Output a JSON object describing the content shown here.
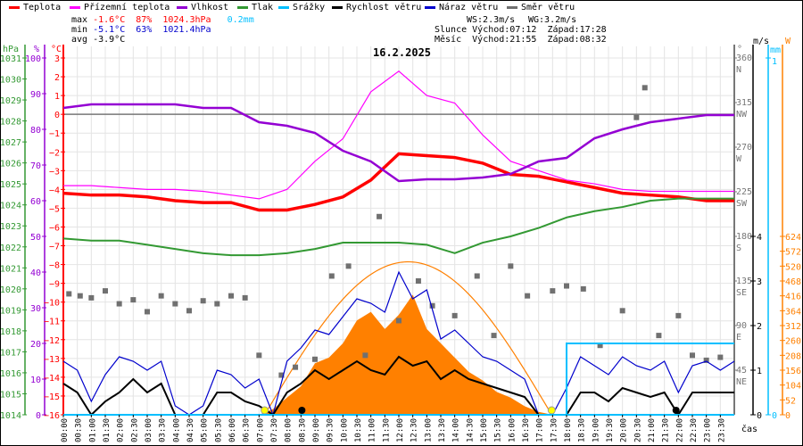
{
  "legend": [
    {
      "label": "Teplota",
      "color": "#ff0000"
    },
    {
      "label": "Přízemní teplota",
      "color": "#ff00ff"
    },
    {
      "label": "Vlhkost",
      "color": "#9400d3"
    },
    {
      "label": "Tlak",
      "color": "#339933"
    },
    {
      "label": "Srážky",
      "color": "#00bfff"
    },
    {
      "label": "Rychlost větru",
      "color": "#000000"
    },
    {
      "label": "Náraz větru",
      "color": "#0000cc"
    },
    {
      "label": "Směr větru",
      "color": "#707070"
    }
  ],
  "stats": {
    "max_label": "max",
    "max_temp": "-1.6°C",
    "max_hum": "87%",
    "max_press": "1024.3hPa",
    "max_rain": "0.2mm",
    "min_label": "min",
    "min_temp": "-5.1°C",
    "min_hum": "63%",
    "min_press": "1021.4hPa",
    "avg_label": "avg",
    "avg_temp": "-3.9°C",
    "ws": "WS:2.3m/s",
    "wg": "WG:3.2m/s",
    "sun_label": "Slunce",
    "sun_rise": "Východ:07:12",
    "sun_set": "Západ:17:28",
    "moon_label": "Měsíc",
    "moon_rise": "Východ:21:55",
    "moon_set": "Západ:08:32"
  },
  "chart_data": {
    "type": "line",
    "title": "16.2.2025",
    "xlabel": "čas",
    "x_ticks": [
      "00:00",
      "00:30",
      "01:00",
      "01:30",
      "02:00",
      "02:30",
      "03:00",
      "03:30",
      "04:00",
      "04:30",
      "05:00",
      "05:30",
      "06:00",
      "06:30",
      "07:00",
      "07:30",
      "08:00",
      "08:30",
      "09:00",
      "09:30",
      "10:00",
      "10:30",
      "11:00",
      "11:30",
      "12:00",
      "12:30",
      "13:00",
      "13:30",
      "14:00",
      "14:30",
      "15:00",
      "15:30",
      "16:00",
      "16:30",
      "17:00",
      "17:30",
      "18:00",
      "18:30",
      "19:00",
      "19:30",
      "20:00",
      "20:30",
      "21:00",
      "21:30",
      "22:00",
      "22:30",
      "23:00",
      "23:30"
    ],
    "axes": {
      "hPa": {
        "label": "hPa",
        "range": [
          1014,
          1031
        ],
        "ticks": [
          1014,
          1015,
          1016,
          1017,
          1018,
          1019,
          1020,
          1021,
          1022,
          1023,
          1024,
          1025,
          1026,
          1027,
          1028,
          1029,
          1030,
          1031
        ],
        "color": "#339933"
      },
      "pct": {
        "label": "%",
        "range": [
          0,
          100
        ],
        "ticks": [
          0,
          10,
          20,
          30,
          40,
          50,
          60,
          70,
          80,
          90,
          100
        ],
        "color": "#9400d3"
      },
      "temp": {
        "label": "°C",
        "range": [
          -16,
          3
        ],
        "ticks": [
          -16,
          -15,
          -14,
          -13,
          -12,
          -11,
          -10,
          -9,
          -8,
          -7,
          -6,
          -5,
          -4,
          -3,
          -2,
          -1,
          0,
          1,
          2,
          3
        ],
        "color": "#ff0000"
      },
      "dir": {
        "label": "°",
        "range": [
          0,
          360
        ],
        "ticks": [
          {
            "v": 45,
            "t": "45",
            "d": "NE"
          },
          {
            "v": 90,
            "t": "90",
            "d": "E"
          },
          {
            "v": 135,
            "t": "135",
            "d": "SE"
          },
          {
            "v": 180,
            "t": "180",
            "d": "S"
          },
          {
            "v": 225,
            "t": "225",
            "d": "SW"
          },
          {
            "v": 270,
            "t": "270",
            "d": "W"
          },
          {
            "v": 315,
            "t": "315",
            "d": "NW"
          },
          {
            "v": 360,
            "t": "360",
            "d": "N"
          }
        ],
        "color": "#707070"
      },
      "wind": {
        "label": "m/s",
        "range": [
          0,
          8
        ],
        "ticks": [
          0,
          1,
          2,
          3,
          4
        ],
        "color": "#000000"
      },
      "rain": {
        "label": "mm",
        "range": [
          0,
          1
        ],
        "ticks": [
          0,
          1
        ],
        "color": "#00bfff"
      },
      "solar": {
        "label": "W",
        "range": [
          0,
          1248
        ],
        "ticks": [
          0,
          52,
          104,
          156,
          208,
          260,
          312,
          364,
          416,
          468,
          520,
          572,
          624
        ],
        "color": "#ff8000"
      }
    },
    "hours": [
      0,
      1,
      2,
      3,
      4,
      5,
      6,
      7,
      8,
      9,
      10,
      11,
      12,
      13,
      14,
      15,
      16,
      17,
      18,
      19,
      20,
      21,
      22,
      23,
      24
    ],
    "series": [
      {
        "name": "Teplota",
        "axis": "temp",
        "values": [
          -4.2,
          -4.3,
          -4.3,
          -4.4,
          -4.6,
          -4.7,
          -4.7,
          -5.1,
          -5.1,
          -4.8,
          -4.4,
          -3.5,
          -2.1,
          -2.2,
          -2.3,
          -2.6,
          -3.2,
          -3.3,
          -3.6,
          -3.9,
          -4.2,
          -4.3,
          -4.4,
          -4.6,
          -4.6
        ]
      },
      {
        "name": "Přízemní teplota",
        "axis": "temp",
        "values": [
          -3.8,
          -3.8,
          -3.9,
          -4.0,
          -4.0,
          -4.1,
          -4.3,
          -4.5,
          -4.0,
          -2.5,
          -1.3,
          1.2,
          2.3,
          1.0,
          0.6,
          -1.1,
          -2.5,
          -3.0,
          -3.5,
          -3.7,
          -4.0,
          -4.1,
          -4.1,
          -4.1,
          -4.1
        ]
      },
      {
        "name": "Vlhkost",
        "axis": "pct",
        "values": [
          86,
          87,
          87,
          87,
          87,
          86,
          86,
          82,
          81,
          79,
          74,
          71,
          65.5,
          66,
          66,
          66.5,
          67.5,
          71,
          72,
          77.5,
          80,
          82,
          83,
          84,
          84
        ]
      },
      {
        "name": "Tlak",
        "axis": "hPa",
        "values": [
          1022.4,
          1022.3,
          1022.3,
          1022.1,
          1021.9,
          1021.7,
          1021.6,
          1021.6,
          1021.7,
          1021.9,
          1022.2,
          1022.2,
          1022.2,
          1022.1,
          1021.7,
          1022.2,
          1022.5,
          1022.9,
          1023.4,
          1023.7,
          1023.9,
          1024.2,
          1024.3,
          1024.3,
          1024.3
        ]
      }
    ],
    "half_hours": [
      0,
      0.5,
      1,
      1.5,
      2,
      2.5,
      3,
      3.5,
      4,
      4.5,
      5,
      5.5,
      6,
      6.5,
      7,
      7.5,
      8,
      8.5,
      9,
      9.5,
      10,
      10.5,
      11,
      11.5,
      12,
      12.5,
      13,
      13.5,
      14,
      14.5,
      15,
      15.5,
      16,
      16.5,
      17,
      17.5,
      18,
      18.5,
      19,
      19.5,
      20,
      20.5,
      21,
      21.5,
      22,
      22.5,
      23,
      23.5,
      24
    ],
    "wind_speed": [
      0.7,
      0.5,
      0,
      0.3,
      0.5,
      0.8,
      0.5,
      0.7,
      0,
      0,
      0,
      0.5,
      0.5,
      0.3,
      0.2,
      0,
      0.5,
      0.7,
      1.0,
      0.8,
      1.0,
      1.2,
      1.0,
      0.9,
      1.3,
      1.1,
      1.2,
      0.8,
      1.0,
      0.8,
      0.7,
      0.6,
      0.5,
      0.4,
      0,
      0,
      0,
      0.5,
      0.5,
      0.3,
      0.6,
      0.5,
      0.4,
      0.5,
      0,
      0.5,
      0.5,
      0.5,
      0.5
    ],
    "wind_gust": [
      1.2,
      1.0,
      0.3,
      0.9,
      1.3,
      1.2,
      1.0,
      1.2,
      0.2,
      0,
      0.2,
      1.0,
      0.9,
      0.6,
      0.8,
      0,
      1.2,
      1.5,
      1.9,
      1.8,
      2.2,
      2.6,
      2.5,
      2.3,
      3.2,
      2.6,
      2.8,
      1.7,
      1.9,
      1.6,
      1.3,
      1.2,
      1.0,
      0.8,
      0,
      0,
      0.6,
      1.3,
      1.1,
      0.9,
      1.3,
      1.1,
      1.0,
      1.2,
      0.5,
      1.1,
      1.2,
      1.0,
      1.2
    ],
    "rain": [
      0,
      0,
      0,
      0,
      0,
      0,
      0,
      0,
      0,
      0,
      0,
      0,
      0,
      0,
      0,
      0,
      0,
      0,
      0,
      0,
      0,
      0,
      0,
      0,
      0,
      0,
      0,
      0,
      0,
      0,
      0,
      0,
      0,
      0,
      0,
      0,
      0.2,
      0.2,
      0.2,
      0.2,
      0.2,
      0.2,
      0.2,
      0.2,
      0.2,
      0.2,
      0.2,
      0.2,
      0.2
    ],
    "solar": [
      0,
      0,
      0,
      0,
      0,
      0,
      0,
      0,
      0,
      0,
      0,
      0,
      0,
      0,
      0,
      20,
      60,
      100,
      180,
      200,
      250,
      330,
      360,
      300,
      350,
      420,
      300,
      250,
      200,
      150,
      120,
      80,
      60,
      30,
      10,
      0,
      0,
      0,
      0,
      0,
      0,
      0,
      0,
      0,
      0,
      0,
      0,
      0,
      0
    ],
    "solar_theoretical_peak": 535,
    "wind_direction": [
      [
        0.2,
        122
      ],
      [
        0.6,
        120
      ],
      [
        1.0,
        118
      ],
      [
        1.5,
        125
      ],
      [
        2.0,
        112
      ],
      [
        2.5,
        116
      ],
      [
        3.0,
        104
      ],
      [
        3.5,
        120
      ],
      [
        4.0,
        112
      ],
      [
        4.5,
        105
      ],
      [
        5.0,
        115
      ],
      [
        5.5,
        112
      ],
      [
        6.0,
        120
      ],
      [
        6.5,
        118
      ],
      [
        7.0,
        60
      ],
      [
        7.8,
        40
      ],
      [
        8.3,
        48
      ],
      [
        9.0,
        56
      ],
      [
        9.6,
        140
      ],
      [
        10.2,
        150
      ],
      [
        10.8,
        60
      ],
      [
        11.3,
        200
      ],
      [
        12.0,
        95
      ],
      [
        12.7,
        135
      ],
      [
        13.2,
        110
      ],
      [
        14.0,
        100
      ],
      [
        14.8,
        140
      ],
      [
        15.4,
        80
      ],
      [
        16.0,
        150
      ],
      [
        16.6,
        120
      ],
      [
        17.5,
        125
      ],
      [
        18.0,
        130
      ],
      [
        18.6,
        127
      ],
      [
        19.2,
        70
      ],
      [
        20.0,
        105
      ],
      [
        20.5,
        300
      ],
      [
        20.8,
        330
      ],
      [
        21.3,
        80
      ],
      [
        22.0,
        100
      ],
      [
        22.5,
        60
      ],
      [
        23.0,
        55
      ],
      [
        23.5,
        58
      ]
    ],
    "sun_events": [
      "07:12",
      "17:28"
    ],
    "moon_events": [
      "08:32",
      "21:55"
    ]
  }
}
